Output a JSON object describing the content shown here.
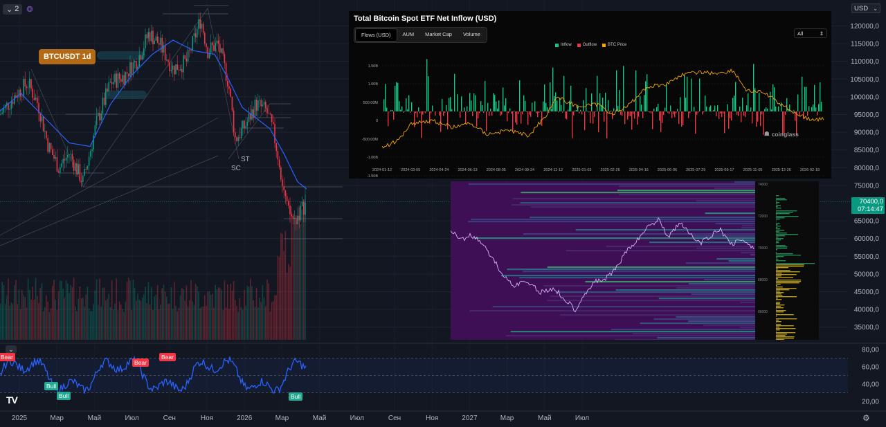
{
  "toolbar": {
    "layout_count": "2",
    "chevron_icon": "chevron-down-icon",
    "indicator_icon": "indicator-icon"
  },
  "symbol_badge": "BTCUSDT 1d",
  "currency": "USD",
  "price_tag": {
    "price": "70400,0",
    "countdown": "07:14:47"
  },
  "price_axis": [
    "120000,0",
    "115000,0",
    "110000,0",
    "105000,0",
    "100000,0",
    "95000,0",
    "90000,0",
    "85000,0",
    "80000,0",
    "75000,0",
    "65000,0",
    "60000,0",
    "55000,0",
    "50000,0",
    "45000,0",
    "40000,0",
    "35000,0"
  ],
  "rsi_axis": [
    "80,00",
    "60,00",
    "40,00",
    "20,00"
  ],
  "time_axis": [
    "2025",
    "Мар",
    "Май",
    "Июл",
    "Сен",
    "Ноя",
    "2026",
    "Мар",
    "Май",
    "Июл",
    "Сен",
    "Ноя",
    "2027",
    "Мар",
    "Май",
    "Июл"
  ],
  "chart_labels": {
    "st": "ST",
    "sc": "SC"
  },
  "rsi_signals": [
    {
      "label": "Bear",
      "kind": "bear"
    },
    {
      "label": "Bull",
      "kind": "bull"
    },
    {
      "label": "Bull",
      "kind": "bull"
    },
    {
      "label": "Bear",
      "kind": "bear"
    },
    {
      "label": "Bear",
      "kind": "bear"
    },
    {
      "label": "Bull",
      "kind": "bull"
    }
  ],
  "colors": {
    "background": "#131722",
    "up": "#089981",
    "down": "#f23645",
    "ma": "#2962ff",
    "rsi": "#2962ff",
    "badge": "#b26a16"
  },
  "etf": {
    "title": "Total Bitcoin Spot ETF Net Inflow (USD)",
    "tabs": [
      "Flows (USD)",
      "AUM",
      "Market Cap",
      "Volume"
    ],
    "range": "All",
    "legend": [
      "Inflow",
      "Outflow",
      "BTC Price"
    ],
    "watermark": "coinglass",
    "y_ticks": [
      "1.50B",
      "1.00B",
      "500.00M",
      "0",
      "-500.00M",
      "-1.00B",
      "-1.50B"
    ],
    "x_ticks": [
      "2024-01-12",
      "2024-03-05",
      "2024-04-24",
      "2024-06-13",
      "2024-08-05",
      "2024-09-24",
      "2024-11-12",
      "2025-01-03",
      "2025-02-26",
      "2025-04-16",
      "2025-06-06",
      "2025-07-29",
      "2025-09-17",
      "2025-11-05",
      "2025-12-26",
      "2026-02-18"
    ]
  },
  "heatmap_ticks": [
    "74000",
    "72000",
    "70000",
    "68000",
    "66000"
  ],
  "chart_data": {
    "type": "candlestick",
    "title": "BTCUSDT 1d",
    "y_unit": "USD",
    "ylim": [
      32000,
      124000
    ],
    "x_range": [
      "2025-01",
      "2027-08"
    ],
    "last_price": 70400,
    "approx_path": [
      [
        0,
        95000
      ],
      [
        20,
        100000
      ],
      [
        40,
        104000
      ],
      [
        55,
        98000
      ],
      [
        70,
        86000
      ],
      [
        85,
        80000
      ],
      [
        100,
        84000
      ],
      [
        120,
        76000
      ],
      [
        140,
        93000
      ],
      [
        160,
        104000
      ],
      [
        180,
        106000
      ],
      [
        200,
        111000
      ],
      [
        215,
        118000
      ],
      [
        230,
        115000
      ],
      [
        250,
        108000
      ],
      [
        270,
        110000
      ],
      [
        290,
        122000
      ],
      [
        300,
        113000
      ],
      [
        315,
        115000
      ],
      [
        330,
        104000
      ],
      [
        340,
        88000
      ],
      [
        355,
        92000
      ],
      [
        370,
        98000
      ],
      [
        385,
        96000
      ],
      [
        395,
        90000
      ],
      [
        405,
        80000
      ],
      [
        415,
        68000
      ],
      [
        425,
        65000
      ],
      [
        435,
        68000
      ],
      [
        443,
        70400
      ]
    ],
    "ma_path": [
      [
        0,
        96000
      ],
      [
        30,
        101000
      ],
      [
        60,
        95000
      ],
      [
        100,
        87000
      ],
      [
        130,
        86000
      ],
      [
        160,
        98000
      ],
      [
        190,
        106000
      ],
      [
        220,
        112000
      ],
      [
        250,
        116000
      ],
      [
        280,
        113000
      ],
      [
        310,
        112000
      ],
      [
        330,
        105000
      ],
      [
        350,
        97000
      ],
      [
        370,
        94000
      ],
      [
        390,
        91000
      ],
      [
        410,
        84000
      ],
      [
        430,
        76000
      ],
      [
        443,
        74000
      ]
    ],
    "rsi": {
      "levels": [
        70,
        50,
        30
      ],
      "ylim": [
        15,
        85
      ]
    },
    "etf_flows": {
      "series": [
        {
          "name": "Inflow",
          "color": "#16c784"
        },
        {
          "name": "Outflow",
          "color": "#ea3943"
        },
        {
          "name": "BTC Price",
          "color": "#f7a600"
        }
      ]
    }
  }
}
